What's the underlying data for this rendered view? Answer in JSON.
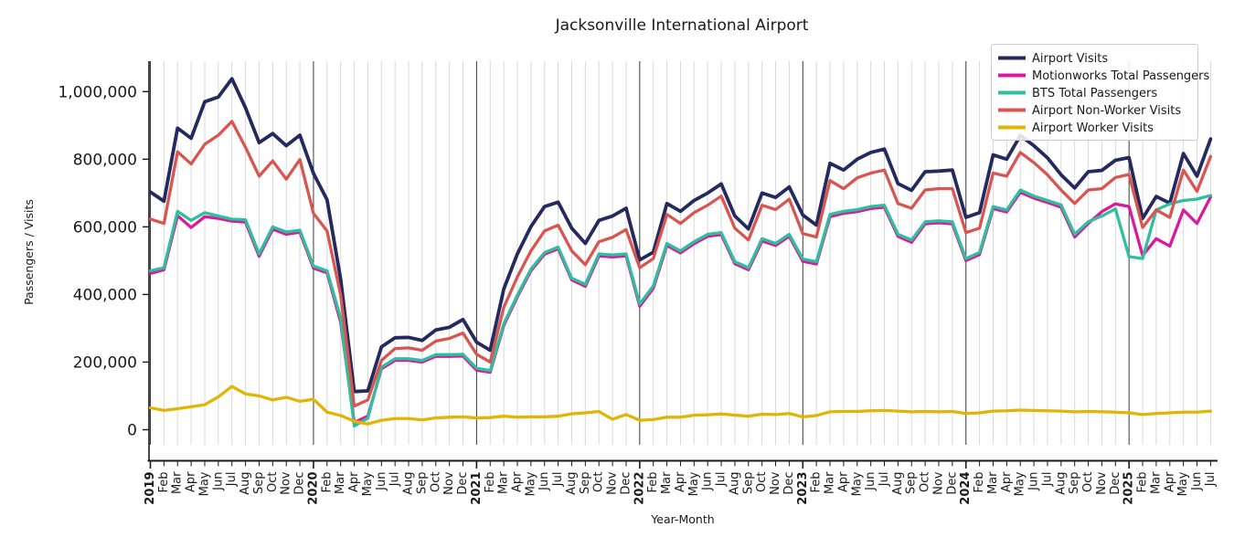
{
  "chart_data": {
    "type": "line",
    "title": "Jacksonville International Airport",
    "xlabel": "Year-Month",
    "ylabel": "Passengers / Visits",
    "grid": "vertical-monthly",
    "legend_position": "upper right",
    "ylim": [
      0,
      1090000
    ],
    "y_ticks": [
      {
        "value": 0,
        "label": "0"
      },
      {
        "value": 200000,
        "label": "200,000"
      },
      {
        "value": 400000,
        "label": "400,000"
      },
      {
        "value": 600000,
        "label": "600,000"
      },
      {
        "value": 800000,
        "label": "800,000"
      },
      {
        "value": 1000000,
        "label": "1,000,000"
      }
    ],
    "x_labels": [
      "2019",
      "Feb",
      "Mar",
      "Apr",
      "May",
      "Jun",
      "Jul",
      "Aug",
      "Sep",
      "Oct",
      "Nov",
      "Dec",
      "2020",
      "Feb",
      "Mar",
      "Apr",
      "May",
      "Jun",
      "Jul",
      "Aug",
      "Sep",
      "Oct",
      "Nov",
      "Dec",
      "2021",
      "Feb",
      "Mar",
      "Apr",
      "May",
      "Jun",
      "Jul",
      "Aug",
      "Sep",
      "Oct",
      "Nov",
      "Dec",
      "2022",
      "Feb",
      "Mar",
      "Apr",
      "May",
      "Jun",
      "Jul",
      "Aug",
      "Sep",
      "Oct",
      "Nov",
      "Dec",
      "2023",
      "Feb",
      "Mar",
      "Apr",
      "May",
      "Jun",
      "Jul",
      "Aug",
      "Sep",
      "Oct",
      "Nov",
      "Dec",
      "2024",
      "Feb",
      "Mar",
      "Apr",
      "May",
      "Jun",
      "Jul",
      "Aug",
      "Sep",
      "Oct",
      "Nov",
      "Dec",
      "2025",
      "Feb",
      "Mar",
      "Apr",
      "May",
      "Jun",
      "Jul"
    ],
    "colors": {
      "airport_visits": "#242a5e",
      "motionworks": "#d81b9b",
      "bts": "#2fbf9f",
      "non_worker": "#d95550",
      "worker": "#e0b506",
      "grid": "#d9d9d9",
      "year_line": "#3a3a3a",
      "spine": "#1a1a1a"
    },
    "series": [
      {
        "name": "Airport Visits",
        "color": "#242a5e",
        "width": 3.8,
        "values": [
          703000,
          676000,
          892000,
          862000,
          970000,
          984000,
          1038000,
          952000,
          849000,
          876000,
          840000,
          871000,
          758000,
          680000,
          445000,
          113000,
          115000,
          245000,
          272000,
          273000,
          264000,
          295000,
          303000,
          326000,
          259000,
          235000,
          416000,
          520000,
          601000,
          660000,
          673000,
          596000,
          551000,
          619000,
          632000,
          655000,
          502000,
          525000,
          669000,
          646000,
          678000,
          700000,
          727000,
          632000,
          594000,
          700000,
          687000,
          718000,
          635000,
          605000,
          788000,
          768000,
          800000,
          820000,
          830000,
          728000,
          708000,
          763000,
          765000,
          768000,
          628000,
          642000,
          813000,
          800000,
          870000,
          840000,
          804000,
          754000,
          715000,
          763000,
          767000,
          797000,
          805000,
          625000,
          690000,
          670000,
          817000,
          750000,
          860000
        ]
      },
      {
        "name": "Motionworks Total Passengers",
        "color": "#d81b9b",
        "width": 3.3,
        "values": [
          462000,
          473000,
          633000,
          598000,
          630000,
          625000,
          617000,
          614000,
          513000,
          593000,
          578000,
          584000,
          478000,
          464000,
          318000,
          22000,
          40000,
          180000,
          205000,
          205000,
          200000,
          217000,
          217000,
          218000,
          176000,
          170000,
          308000,
          393000,
          470000,
          519000,
          535000,
          443000,
          424000,
          514000,
          511000,
          514000,
          365000,
          418000,
          545000,
          523000,
          550000,
          572000,
          577000,
          491000,
          473000,
          558000,
          545000,
          572000,
          498000,
          490000,
          630000,
          640000,
          645000,
          654000,
          658000,
          572000,
          554000,
          609000,
          612000,
          609000,
          500000,
          518000,
          654000,
          644000,
          702000,
          685000,
          672000,
          658000,
          570000,
          610000,
          645000,
          668000,
          660000,
          515000,
          565000,
          543000,
          650000,
          610000,
          688000
        ]
      },
      {
        "name": "BTS Total Passengers",
        "color": "#2fbf9f",
        "width": 3.3,
        "values": [
          470000,
          479000,
          646000,
          619000,
          642000,
          632000,
          623000,
          621000,
          520000,
          600000,
          585000,
          590000,
          484000,
          470000,
          330000,
          11000,
          34000,
          185000,
          210000,
          210000,
          205000,
          222000,
          222000,
          223000,
          182000,
          175000,
          313000,
          398000,
          475000,
          524000,
          540000,
          448000,
          430000,
          520000,
          517000,
          520000,
          372000,
          425000,
          551000,
          529000,
          556000,
          578000,
          583000,
          497000,
          479000,
          565000,
          551000,
          578000,
          505000,
          497000,
          637000,
          646000,
          651000,
          660000,
          664000,
          578000,
          561000,
          615000,
          618000,
          615000,
          506000,
          524000,
          660000,
          650000,
          709000,
          691000,
          678000,
          665000,
          578000,
          615000,
          632000,
          653000,
          512000,
          506000,
          650000,
          668000,
          678000,
          682000,
          693000
        ]
      },
      {
        "name": "Airport Non-Worker Visits",
        "color": "#d95550",
        "width": 3.3,
        "values": [
          623000,
          610000,
          822000,
          786000,
          844000,
          871000,
          912000,
          835000,
          750000,
          795000,
          741000,
          799000,
          640000,
          588000,
          398000,
          70000,
          88000,
          205000,
          240000,
          242000,
          235000,
          262000,
          270000,
          286000,
          223000,
          200000,
          362000,
          452000,
          529000,
          588000,
          605000,
          529000,
          488000,
          556000,
          569000,
          592000,
          479000,
          506000,
          637000,
          610000,
          642000,
          664000,
          691000,
          596000,
          561000,
          664000,
          651000,
          682000,
          580000,
          570000,
          737000,
          713000,
          745000,
          759000,
          768000,
          669000,
          655000,
          709000,
          713000,
          713000,
          583000,
          596000,
          759000,
          750000,
          820000,
          790000,
          754000,
          709000,
          669000,
          709000,
          713000,
          746000,
          755000,
          598000,
          650000,
          628000,
          768000,
          705000,
          808000
        ]
      },
      {
        "name": "Airport Worker Visits",
        "color": "#e0b506",
        "width": 3.3,
        "values": [
          65000,
          57000,
          62000,
          68000,
          74000,
          97000,
          128000,
          106000,
          100000,
          88000,
          96000,
          84000,
          90000,
          52000,
          42000,
          25000,
          17000,
          28000,
          33000,
          33000,
          29000,
          35000,
          37000,
          38000,
          35000,
          36000,
          40000,
          37000,
          38000,
          38000,
          40000,
          47000,
          50000,
          54000,
          31000,
          45000,
          28000,
          30000,
          37000,
          37000,
          43000,
          44000,
          47000,
          43000,
          40000,
          46000,
          45000,
          48000,
          38000,
          42000,
          53000,
          54000,
          54000,
          56000,
          57000,
          55000,
          53000,
          54000,
          53000,
          54000,
          48000,
          50000,
          55000,
          56000,
          58000,
          57000,
          56000,
          55000,
          53000,
          54000,
          53000,
          52000,
          50000,
          45000,
          48000,
          50000,
          52000,
          52000,
          55000
        ]
      }
    ]
  }
}
